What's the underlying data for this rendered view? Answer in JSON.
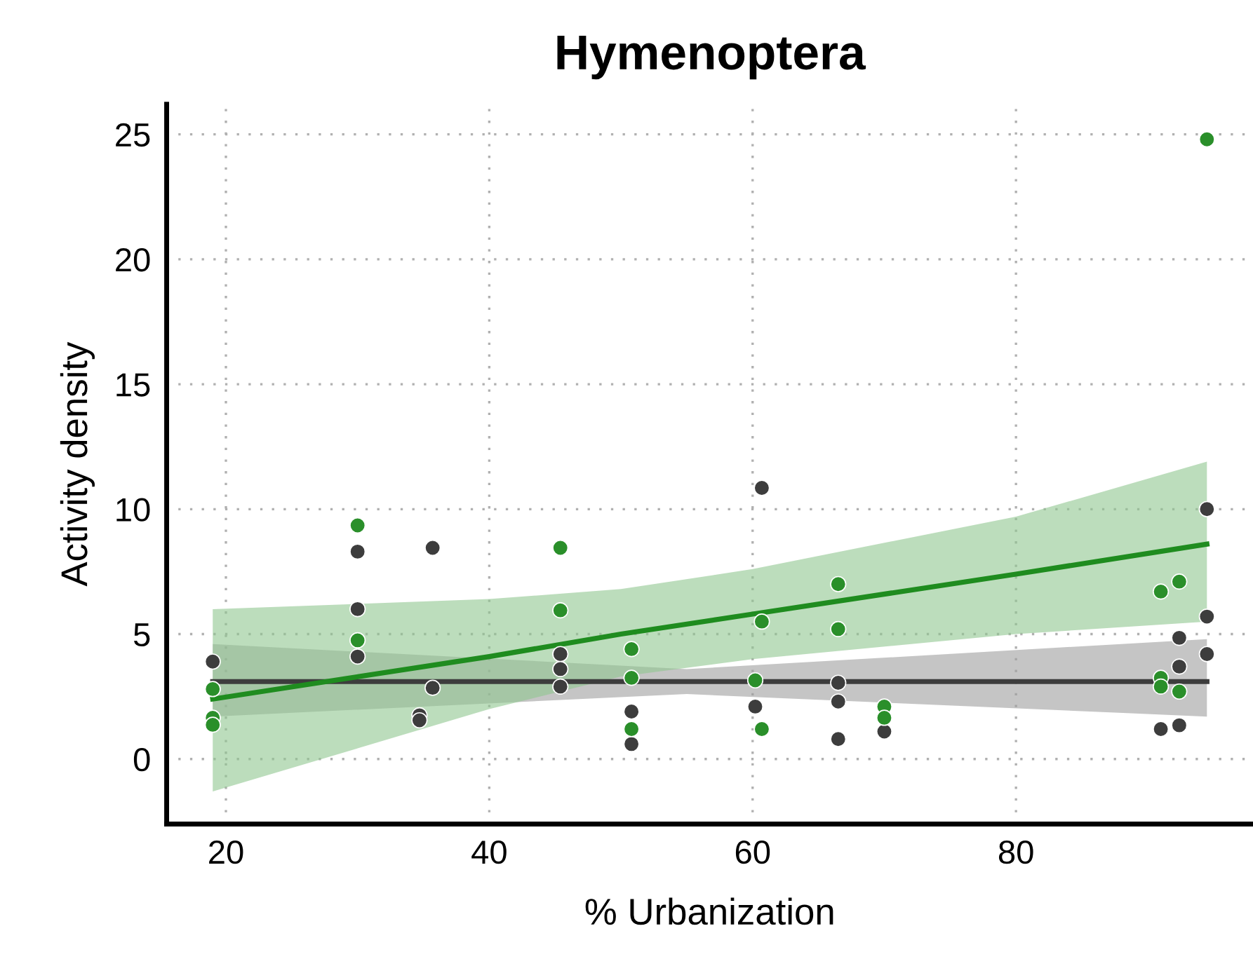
{
  "chart_data": {
    "type": "scatter",
    "title": "Hymenoptera",
    "xlabel": "% Urbanization",
    "ylabel": "Activity density",
    "xlim": [
      15.5,
      98
    ],
    "ylim": [
      -2.6,
      26.2
    ],
    "xticks": [
      20,
      40,
      60,
      80
    ],
    "yticks": [
      0,
      5,
      10,
      15,
      20,
      25
    ],
    "grid": true,
    "legend": false,
    "series": [
      {
        "color": "#3d3d3d",
        "marker": "circle",
        "x": [
          19,
          30,
          30,
          30,
          35.7,
          35.7,
          34.7,
          34.7,
          45.4,
          45.4,
          45.4,
          50.8,
          50.8,
          60.7,
          60.2,
          66.5,
          66.5,
          66.5,
          70,
          91,
          92.4,
          92.4,
          92.4,
          94.5,
          94.5,
          94.5
        ],
        "values": [
          3.9,
          8.3,
          6.0,
          4.1,
          8.45,
          2.85,
          1.75,
          1.55,
          4.2,
          3.6,
          2.9,
          1.9,
          0.6,
          10.85,
          2.1,
          3.05,
          2.3,
          0.8,
          1.1,
          1.2,
          4.85,
          3.7,
          1.35,
          10.0,
          5.7,
          4.2
        ]
      },
      {
        "color": "#2a8f2a",
        "marker": "circle",
        "x": [
          19,
          19,
          19,
          30,
          30,
          45.4,
          45.4,
          50.8,
          50.8,
          50.8,
          60.7,
          60.2,
          60.7,
          66.5,
          66.5,
          70,
          70,
          91,
          91,
          91,
          92.4,
          92.4,
          94.5
        ],
        "values": [
          2.8,
          1.65,
          1.37,
          9.35,
          4.75,
          8.45,
          5.95,
          4.4,
          3.25,
          1.2,
          5.5,
          3.15,
          1.2,
          7.0,
          5.2,
          2.1,
          1.65,
          6.7,
          3.25,
          2.9,
          7.1,
          2.7,
          24.8
        ]
      },
      {
        "type": "line",
        "marker": "none",
        "color": "#3d3d3d",
        "x": [
          19,
          55,
          94.5
        ],
        "values": [
          3.1,
          3.1,
          3.1
        ],
        "lower": [
          1.7,
          2.6,
          1.7
        ],
        "upper": [
          4.6,
          3.6,
          4.8
        ]
      },
      {
        "type": "line",
        "marker": "none",
        "color": "#1f8c1f",
        "x": [
          19,
          40,
          50,
          60,
          80,
          94.5
        ],
        "values": [
          2.4,
          4.1,
          5.0,
          5.8,
          7.4,
          8.6
        ],
        "lower": [
          -1.3,
          2.0,
          3.3,
          4.0,
          5.0,
          5.5
        ],
        "upper": [
          6.0,
          6.4,
          6.8,
          7.6,
          9.7,
          11.9
        ]
      }
    ]
  }
}
